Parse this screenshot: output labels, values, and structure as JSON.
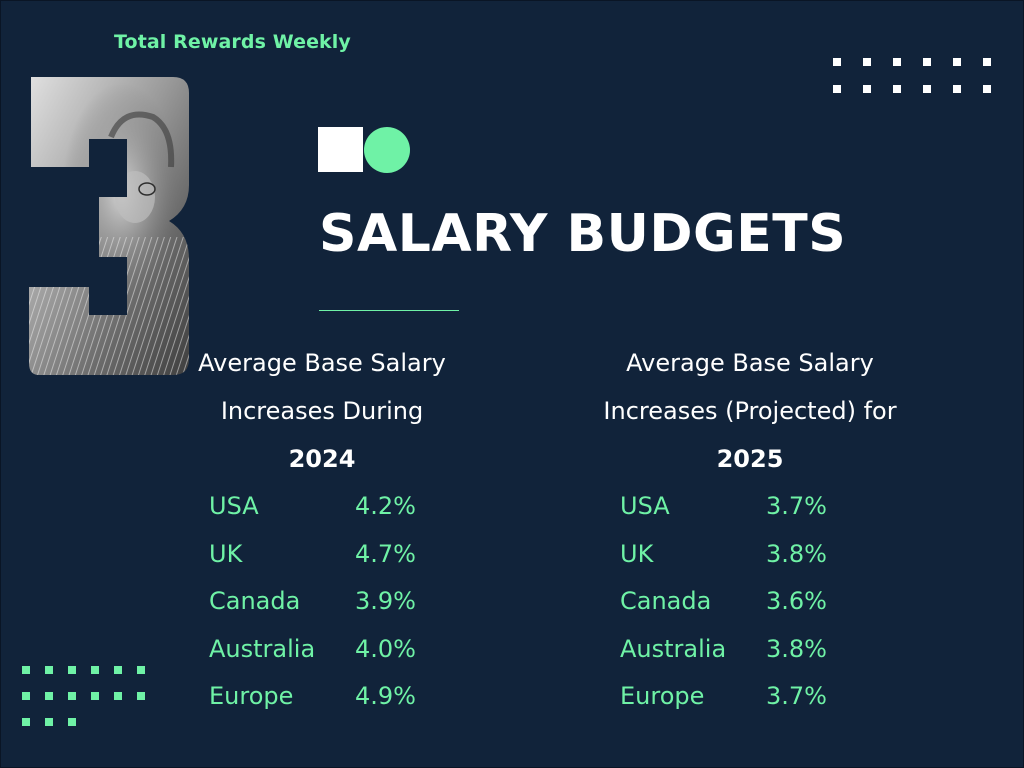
{
  "header": {
    "brand": "Total Rewards Weekly",
    "issue_number": "3",
    "title": "SALARY BUDGETS"
  },
  "colors": {
    "background": "#11233a",
    "accent": "#6ff2a6",
    "text": "#ffffff"
  },
  "left_panel": {
    "heading_line1": "Average Base Salary",
    "heading_line2": "Increases During",
    "year": "2024",
    "rows": [
      {
        "region": "USA",
        "value": "4.2%"
      },
      {
        "region": "UK",
        "value": "4.7%"
      },
      {
        "region": "Canada",
        "value": "3.9%"
      },
      {
        "region": "Australia",
        "value": "4.0%"
      },
      {
        "region": "Europe",
        "value": "4.9%"
      }
    ]
  },
  "right_panel": {
    "heading_line1": "Average Base Salary",
    "heading_line2": "Increases (Projected) for",
    "year": "2025",
    "rows": [
      {
        "region": "USA",
        "value": "3.7%"
      },
      {
        "region": "UK",
        "value": "3.8%"
      },
      {
        "region": "Canada",
        "value": "3.6%"
      },
      {
        "region": "Australia",
        "value": "3.8%"
      },
      {
        "region": "Europe",
        "value": "3.7%"
      }
    ]
  }
}
